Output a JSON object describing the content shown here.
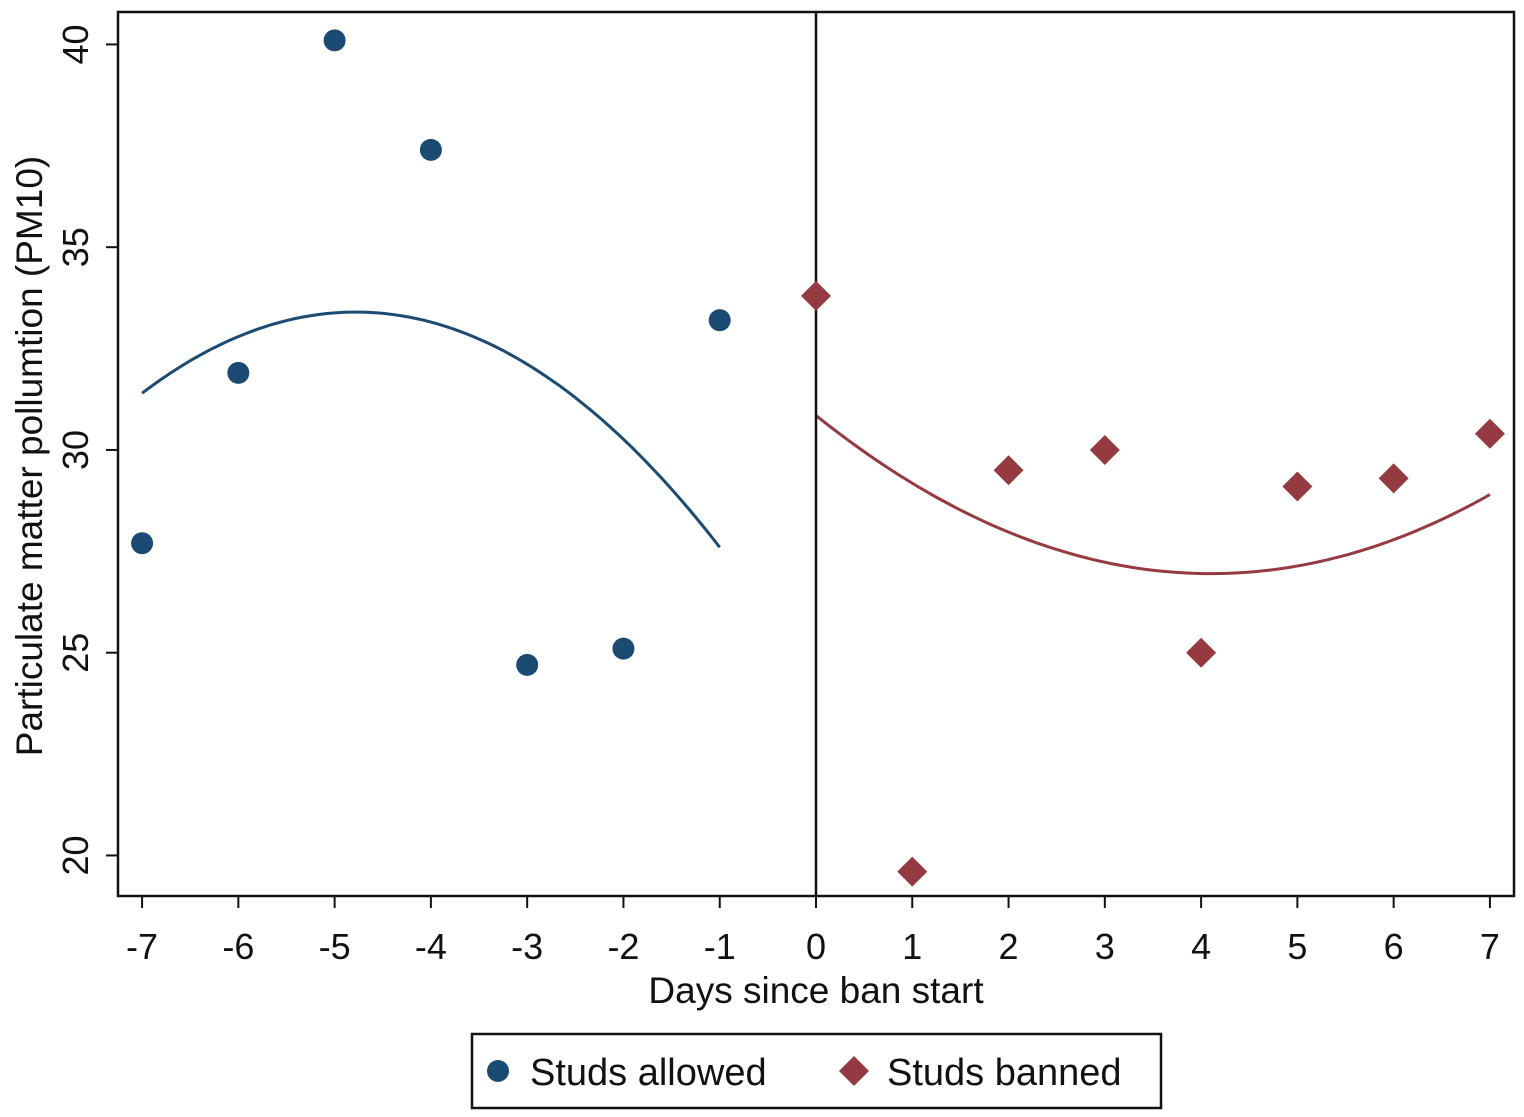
{
  "chart_data": {
    "type": "scatter",
    "title": "",
    "xlabel": "Days since ban start",
    "ylabel": "Particulate matter pollumtion (PM10)",
    "xlim": [
      -7.25,
      7.25
    ],
    "ylim": [
      19.0,
      40.8
    ],
    "xticks": [
      -7,
      -6,
      -5,
      -4,
      -3,
      -2,
      -1,
      0,
      1,
      2,
      3,
      4,
      5,
      6,
      7
    ],
    "yticks": [
      20,
      25,
      30,
      35,
      40
    ],
    "grid": false,
    "vertical_line_x": 0,
    "legend_position": "bottom",
    "series": [
      {
        "name": "Studs allowed",
        "marker": "circle",
        "color": "#1b4a72",
        "x": [
          -7,
          -6,
          -5,
          -4,
          -3,
          -2,
          -1
        ],
        "y": [
          27.7,
          31.9,
          40.1,
          37.4,
          24.7,
          25.1,
          33.2
        ]
      },
      {
        "name": "Studs banned",
        "marker": "diamond",
        "color": "#943a40",
        "x": [
          0,
          1,
          2,
          3,
          4,
          5,
          6,
          7
        ],
        "y": [
          33.8,
          19.6,
          29.5,
          30.0,
          25.0,
          29.1,
          29.3,
          30.4
        ]
      }
    ],
    "fit_lines": [
      {
        "type": "quadratic",
        "color": "#1b4a72",
        "x_range": [
          -7,
          -1
        ],
        "x": [
          -7,
          -4.75,
          -1
        ],
        "y": [
          31.4,
          33.4,
          27.6
        ]
      },
      {
        "type": "quadratic",
        "color": "#943a40",
        "x_range": [
          0,
          7
        ],
        "x": [
          0,
          4.1,
          7
        ],
        "y": [
          30.85,
          26.95,
          28.9
        ]
      }
    ]
  }
}
